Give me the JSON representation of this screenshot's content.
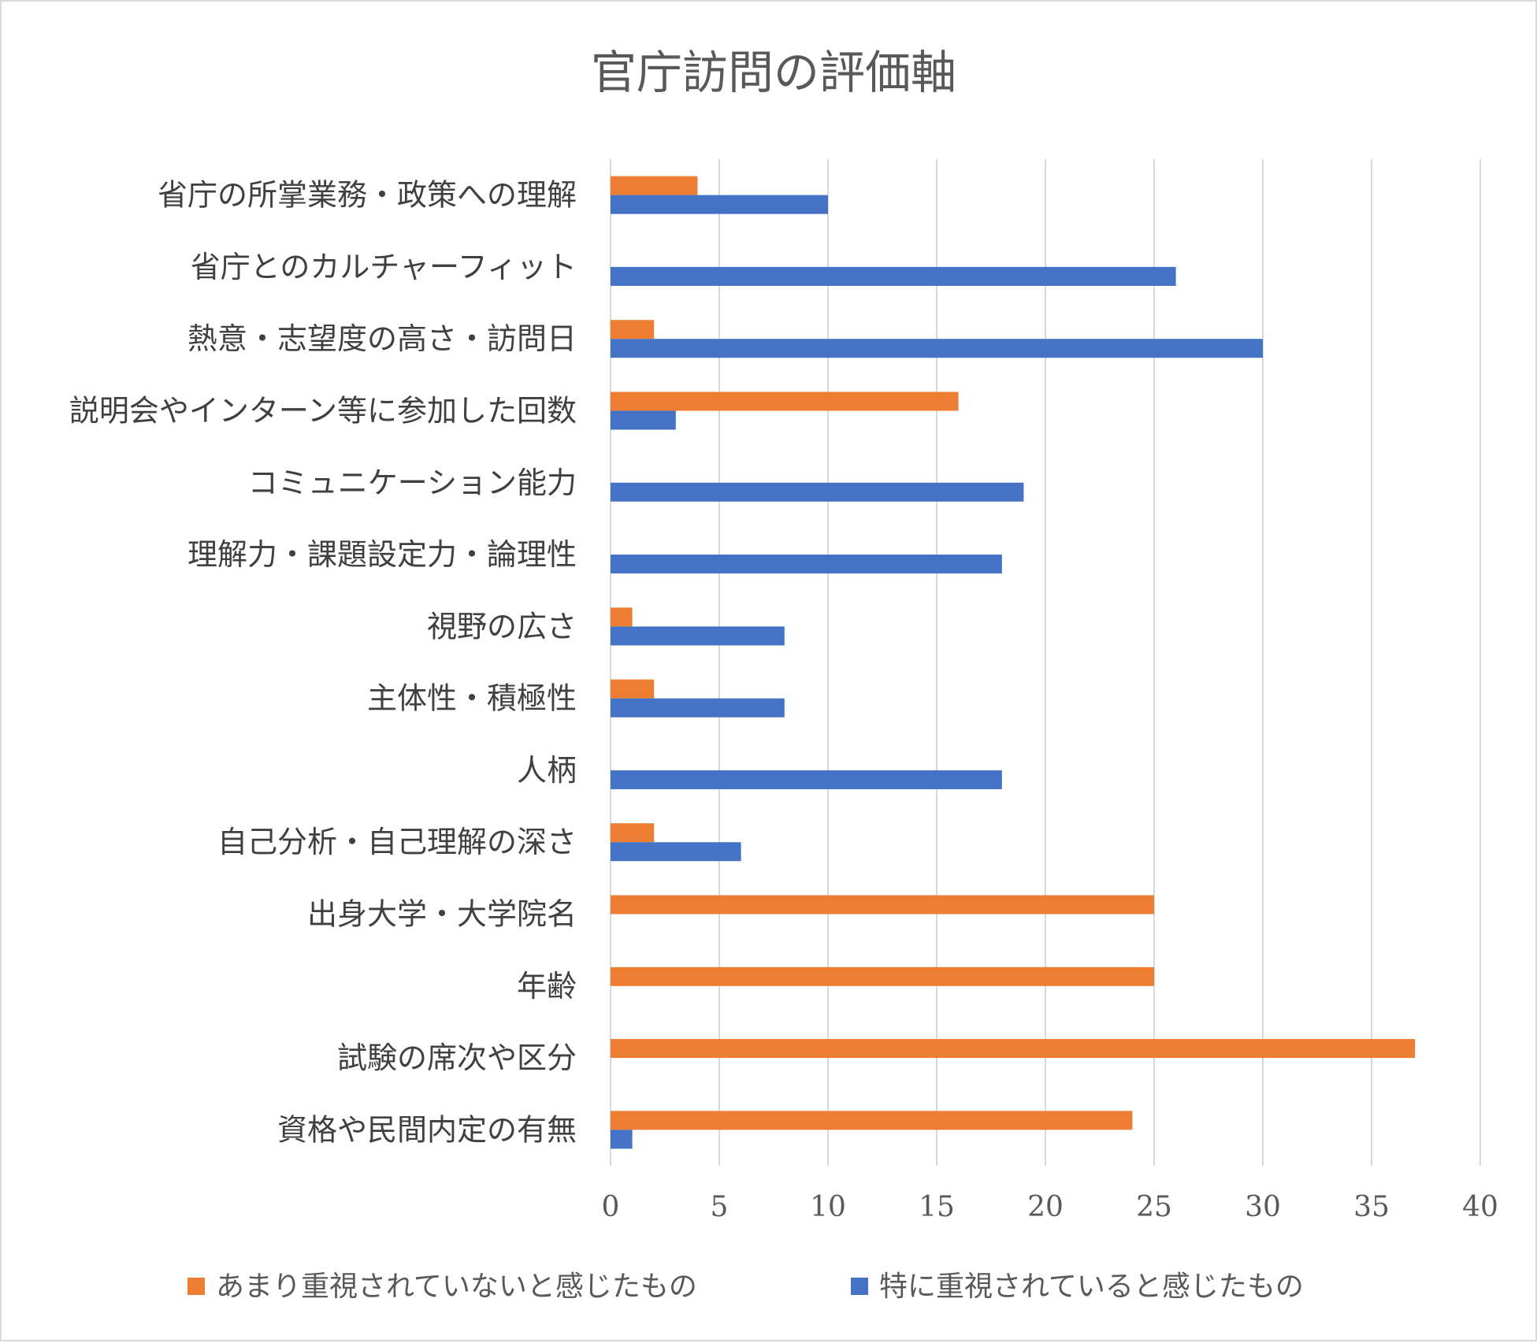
{
  "chart_data": {
    "type": "bar",
    "orientation": "horizontal",
    "title": "官庁訪問の評価軸",
    "categories": [
      "省庁の所掌業務・政策への理解",
      "省庁とのカルチャーフィット",
      "熱意・志望度の高さ・訪問日",
      "説明会やインターン等に参加した回数",
      "コミュニケーション能力",
      "理解力・課題設定力・論理性",
      "視野の広さ",
      "主体性・積極性",
      "人柄",
      "自己分析・自己理解の深さ",
      "出身大学・大学院名",
      "年齢",
      "試験の席次や区分",
      "資格や民間内定の有無"
    ],
    "series": [
      {
        "name": "あまり重視されていないと感じたもの",
        "color": "#ED7D31",
        "values": [
          4,
          0,
          2,
          16,
          0,
          0,
          1,
          2,
          0,
          2,
          25,
          25,
          37,
          24
        ]
      },
      {
        "name": "特に重視されていると感じたもの",
        "color": "#4472C4",
        "values": [
          10,
          26,
          30,
          3,
          19,
          18,
          8,
          8,
          18,
          6,
          0,
          0,
          0,
          1
        ]
      }
    ],
    "xlim": [
      0,
      40
    ],
    "xticks": [
      "0",
      "5",
      "10",
      "15",
      "20",
      "25",
      "30",
      "35",
      "40"
    ],
    "grid": "vertical",
    "legend_position": "bottom"
  }
}
